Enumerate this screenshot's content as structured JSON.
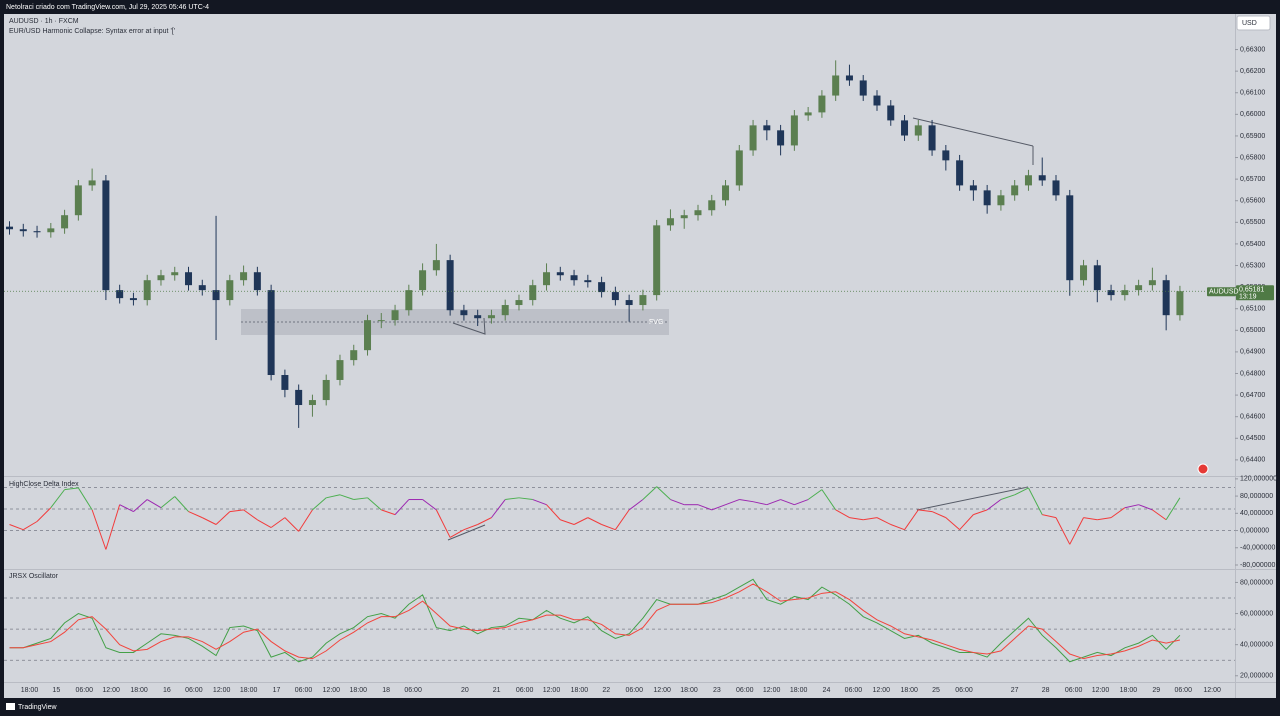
{
  "header": {
    "caption": "Netolraci criado com TradingView.com, Jul 29, 2025 05:46 UTC-4",
    "symbol": "AUDUSD · 1h · FXCM",
    "error": "EUR/USD Harmonic Collapse: Syntax error at input '['"
  },
  "currency": "USD",
  "footer": {
    "brand": "TradingView"
  },
  "chart_data": [
    {
      "type": "candlestick",
      "open": [
        0.6548,
        0.65468,
        0.65459,
        0.65454,
        0.65472,
        0.65533,
        0.65671,
        0.65694,
        0.65186,
        0.65149,
        0.6514,
        0.65232,
        0.65255,
        0.65269,
        0.65209,
        0.65186,
        0.6514,
        0.65232,
        0.65269,
        0.65186,
        0.64793,
        0.64724,
        0.64654,
        0.64677,
        0.6477,
        0.64862,
        0.64908,
        0.65047,
        0.65047,
        0.65093,
        0.65186,
        0.65278,
        0.65325,
        0.65093,
        0.6507,
        0.65056,
        0.6507,
        0.65117,
        0.6514,
        0.65209,
        0.65269,
        0.65255,
        0.65232,
        0.65223,
        0.65177,
        0.6514,
        0.65117,
        0.65163,
        0.65486,
        0.65519,
        0.65533,
        0.65556,
        0.65602,
        0.65671,
        0.65833,
        0.65949,
        0.65926,
        0.65856,
        0.65995,
        0.66009,
        0.66087,
        0.6618,
        0.66157,
        0.66087,
        0.66041,
        0.65972,
        0.65902,
        0.65949,
        0.65833,
        0.65787,
        0.65671,
        0.65648,
        0.65579,
        0.65625,
        0.65671,
        0.65718,
        0.65694,
        0.65625,
        0.65232,
        0.65301,
        0.65186,
        0.65163,
        0.65186,
        0.65209,
        0.65232,
        0.6507
      ],
      "high": [
        0.65505,
        0.65493,
        0.65484,
        0.65497,
        0.65558,
        0.65696,
        0.65749,
        0.65719,
        0.65211,
        0.65174,
        0.65257,
        0.6528,
        0.65294,
        0.65294,
        0.65234,
        0.6553,
        0.65257,
        0.653,
        0.65294,
        0.65211,
        0.64818,
        0.64749,
        0.64702,
        0.64795,
        0.64887,
        0.64933,
        0.65072,
        0.6508,
        0.65118,
        0.65211,
        0.6531,
        0.654,
        0.6535,
        0.65118,
        0.65095,
        0.65095,
        0.65142,
        0.65165,
        0.65234,
        0.6531,
        0.65294,
        0.6528,
        0.65257,
        0.65248,
        0.65202,
        0.65165,
        0.65188,
        0.65511,
        0.6556,
        0.65558,
        0.65581,
        0.65627,
        0.65696,
        0.65858,
        0.65974,
        0.65974,
        0.65951,
        0.6602,
        0.66034,
        0.66112,
        0.6625,
        0.6623,
        0.66182,
        0.66112,
        0.66066,
        0.65997,
        0.65974,
        0.65974,
        0.65858,
        0.65812,
        0.65696,
        0.65673,
        0.6565,
        0.65696,
        0.65743,
        0.658,
        0.65719,
        0.6565,
        0.65326,
        0.65326,
        0.65211,
        0.65211,
        0.65234,
        0.6529,
        0.65257,
        0.65206
      ],
      "low": [
        0.65443,
        0.65434,
        0.65429,
        0.65429,
        0.65447,
        0.65508,
        0.65646,
        0.6514,
        0.65124,
        0.65115,
        0.65115,
        0.65207,
        0.6523,
        0.65184,
        0.65161,
        0.64955,
        0.65115,
        0.65207,
        0.65161,
        0.64768,
        0.6469,
        0.64548,
        0.646,
        0.64652,
        0.64745,
        0.64837,
        0.64883,
        0.6501,
        0.65022,
        0.65068,
        0.65161,
        0.65253,
        0.65068,
        0.65045,
        0.6502,
        0.65031,
        0.65045,
        0.65092,
        0.65115,
        0.65184,
        0.6523,
        0.65207,
        0.65198,
        0.65152,
        0.65115,
        0.6504,
        0.65092,
        0.65138,
        0.65461,
        0.6547,
        0.65508,
        0.65531,
        0.65577,
        0.65646,
        0.65808,
        0.6588,
        0.6581,
        0.65831,
        0.6597,
        0.65984,
        0.66062,
        0.66132,
        0.66062,
        0.66016,
        0.65947,
        0.65877,
        0.65877,
        0.65808,
        0.6574,
        0.65646,
        0.656,
        0.6554,
        0.65554,
        0.656,
        0.65646,
        0.65669,
        0.656,
        0.6516,
        0.65207,
        0.6513,
        0.65138,
        0.65138,
        0.65161,
        0.65184,
        0.65,
        0.65045
      ],
      "close": [
        0.65468,
        0.65459,
        0.65454,
        0.65472,
        0.65533,
        0.65671,
        0.65694,
        0.65186,
        0.65149,
        0.6514,
        0.65232,
        0.65255,
        0.65269,
        0.65209,
        0.65186,
        0.6514,
        0.65232,
        0.65269,
        0.65186,
        0.64793,
        0.64724,
        0.64654,
        0.64677,
        0.6477,
        0.64862,
        0.64908,
        0.65047,
        0.65047,
        0.65093,
        0.65186,
        0.65278,
        0.65325,
        0.65093,
        0.6507,
        0.65056,
        0.6507,
        0.65117,
        0.6514,
        0.65209,
        0.65269,
        0.65255,
        0.65232,
        0.65223,
        0.65177,
        0.6514,
        0.65117,
        0.65163,
        0.65486,
        0.65519,
        0.65533,
        0.65556,
        0.65602,
        0.65671,
        0.65833,
        0.65949,
        0.65926,
        0.65856,
        0.65995,
        0.66009,
        0.66087,
        0.6618,
        0.66157,
        0.66087,
        0.66041,
        0.65972,
        0.65902,
        0.65949,
        0.65833,
        0.65787,
        0.65671,
        0.65648,
        0.65579,
        0.65625,
        0.65671,
        0.65718,
        0.65694,
        0.65625,
        0.65232,
        0.65301,
        0.65186,
        0.65163,
        0.65186,
        0.65209,
        0.65232,
        0.6507,
        0.65181
      ],
      "up_color": "#5b7f50",
      "down_color": "#1f3658",
      "ylim": [
        0.6433,
        0.6646
      ],
      "yticks": [
        {
          "value": 0.644,
          "label": "0,64400"
        },
        {
          "value": 0.645,
          "label": "0,64500"
        },
        {
          "value": 0.646,
          "label": "0,64600"
        },
        {
          "value": 0.647,
          "label": "0,64700"
        },
        {
          "value": 0.648,
          "label": "0,64800"
        },
        {
          "value": 0.649,
          "label": "0,64900"
        },
        {
          "value": 0.65,
          "label": "0,65000"
        },
        {
          "value": 0.651,
          "label": "0,65100"
        },
        {
          "value": 0.652,
          "label": "0,65200"
        },
        {
          "value": 0.653,
          "label": "0,65300"
        },
        {
          "value": 0.654,
          "label": "0,65400"
        },
        {
          "value": 0.655,
          "label": "0,65500"
        },
        {
          "value": 0.656,
          "label": "0,65600"
        },
        {
          "value": 0.657,
          "label": "0,65700"
        },
        {
          "value": 0.658,
          "label": "0,65800"
        },
        {
          "value": 0.659,
          "label": "0,65900"
        },
        {
          "value": 0.66,
          "label": "0,66000"
        },
        {
          "value": 0.661,
          "label": "0,66100"
        },
        {
          "value": 0.662,
          "label": "0,66200"
        },
        {
          "value": 0.663,
          "label": "0,66300"
        }
      ],
      "xlim": [
        -0.4,
        89
      ],
      "xticks": [
        {
          "value": 1.45,
          "label": "18:00"
        },
        {
          "value": 3.4,
          "label": "15"
        },
        {
          "value": 5.43,
          "label": "06:00"
        },
        {
          "value": 7.38,
          "label": "12:00"
        },
        {
          "value": 9.41,
          "label": "18:00"
        },
        {
          "value": 11.43,
          "label": "16"
        },
        {
          "value": 13.39,
          "label": "06:00"
        },
        {
          "value": 15.41,
          "label": "12:00"
        },
        {
          "value": 17.37,
          "label": "18:00"
        },
        {
          "value": 19.39,
          "label": "17"
        },
        {
          "value": 21.35,
          "label": "06:00"
        },
        {
          "value": 23.37,
          "label": "12:00"
        },
        {
          "value": 25.33,
          "label": "18:00"
        },
        {
          "value": 27.35,
          "label": "18"
        },
        {
          "value": 29.31,
          "label": "06:00"
        },
        {
          "value": 33.07,
          "label": "20"
        },
        {
          "value": 35.38,
          "label": "21"
        },
        {
          "value": 37.41,
          "label": "06:00"
        },
        {
          "value": 39.36,
          "label": "12:00"
        },
        {
          "value": 41.39,
          "label": "18:00"
        },
        {
          "value": 43.34,
          "label": "22"
        },
        {
          "value": 45.37,
          "label": "06:00"
        },
        {
          "value": 47.4,
          "label": "12:00"
        },
        {
          "value": 49.35,
          "label": "18:00"
        },
        {
          "value": 51.37,
          "label": "23"
        },
        {
          "value": 53.4,
          "label": "06:00"
        },
        {
          "value": 55.35,
          "label": "12:00"
        },
        {
          "value": 57.31,
          "label": "18:00"
        },
        {
          "value": 59.33,
          "label": "24"
        },
        {
          "value": 61.29,
          "label": "06:00"
        },
        {
          "value": 63.31,
          "label": "12:00"
        },
        {
          "value": 65.34,
          "label": "18:00"
        },
        {
          "value": 67.29,
          "label": "25"
        },
        {
          "value": 69.32,
          "label": "06:00"
        },
        {
          "value": 73.0,
          "label": "27"
        },
        {
          "value": 75.25,
          "label": "28"
        },
        {
          "value": 77.28,
          "label": "06:00"
        },
        {
          "value": 79.23,
          "label": "12:00"
        },
        {
          "value": 81.26,
          "label": "18:00"
        },
        {
          "value": 83.28,
          "label": "29"
        },
        {
          "value": 85.24,
          "label": "06:00"
        },
        {
          "value": 87.34,
          "label": "12:00"
        }
      ],
      "last_price": {
        "symbol": "AUDUSD",
        "value": 0.65181,
        "label": "0,65181",
        "countdown": "13:19",
        "color": "#4f7a45"
      },
      "annotations": [
        "FVG"
      ]
    },
    {
      "type": "line",
      "title": "HighClose Delta Index",
      "series": [
        {
          "values": [
            14,
            2,
            21,
            53,
            95,
            99,
            48,
            -44,
            60,
            44,
            72,
            53,
            79,
            44,
            30,
            14,
            44,
            48,
            25,
            7,
            30,
            -2,
            48,
            76,
            83,
            72,
            76,
            48,
            37,
            72,
            72,
            48,
            -16,
            2,
            14,
            30,
            72,
            76,
            72,
            60,
            25,
            14,
            30,
            14,
            2,
            48,
            72,
            102,
            72,
            60,
            60,
            48,
            60,
            72,
            67,
            60,
            72,
            60,
            72,
            95,
            48,
            30,
            25,
            30,
            14,
            2,
            48,
            44,
            30,
            2,
            37,
            48,
            72,
            83,
            99,
            37,
            30,
            -32,
            30,
            25,
            30,
            53,
            60,
            48,
            25,
            76
          ],
          "color_high": "#4caf50",
          "color_mid": "#9c27b0",
          "color_low": "#f23b3b"
        }
      ],
      "levels": [
        100,
        50,
        0
      ],
      "level_color": "#787b86",
      "ylim": [
        -87,
        122
      ],
      "yticks": [
        {
          "value": 120,
          "label": "120,000000"
        },
        {
          "value": 80,
          "label": "80,000000"
        },
        {
          "value": 40,
          "label": "40,000000"
        },
        {
          "value": 0,
          "label": "0,000000"
        },
        {
          "value": -40,
          "label": "-40,000000"
        },
        {
          "value": -80,
          "label": "-80,000000"
        }
      ]
    },
    {
      "type": "line",
      "title": "JRSX Oscillator",
      "series": [
        {
          "color": "#43a047",
          "values": [
            38,
            38,
            41,
            44,
            54,
            60,
            57,
            38,
            35,
            35,
            41,
            47,
            46,
            44,
            39,
            33,
            51,
            52,
            49,
            32,
            35,
            29,
            32,
            41,
            47,
            51,
            58,
            60,
            57,
            66,
            72,
            51,
            49,
            52,
            47,
            51,
            52,
            57,
            56,
            62,
            57,
            54,
            58,
            49,
            44,
            47,
            57,
            69,
            66,
            66,
            66,
            69,
            72,
            77,
            82,
            69,
            66,
            71,
            69,
            77,
            72,
            66,
            58,
            54,
            49,
            44,
            46,
            41,
            38,
            35,
            35,
            32,
            41,
            49,
            57,
            46,
            38,
            29,
            32,
            35,
            33,
            38,
            41,
            46,
            37,
            46
          ]
        },
        {
          "color": "#f2453d",
          "values": [
            38,
            38,
            40,
            42,
            48,
            56,
            58,
            50,
            40,
            36,
            37,
            42,
            45,
            45,
            42,
            37,
            42,
            48,
            50,
            42,
            36,
            32,
            31,
            36,
            43,
            48,
            54,
            58,
            58,
            62,
            68,
            60,
            52,
            50,
            49,
            50,
            51,
            54,
            56,
            59,
            59,
            56,
            56,
            53,
            47,
            46,
            51,
            62,
            66,
            66,
            66,
            67,
            70,
            74,
            79,
            74,
            68,
            69,
            70,
            73,
            74,
            69,
            62,
            56,
            52,
            47,
            45,
            43,
            40,
            37,
            35,
            34,
            36,
            44,
            52,
            50,
            42,
            34,
            31,
            33,
            34,
            36,
            39,
            43,
            41,
            43
          ]
        }
      ],
      "levels": [
        70,
        50,
        30
      ],
      "level_color": "#787b86",
      "ylim": [
        16,
        88
      ],
      "yticks": [
        {
          "value": 80,
          "label": "80,000000"
        },
        {
          "value": 60,
          "label": "60,000000"
        },
        {
          "value": 40,
          "label": "40,000000"
        },
        {
          "value": 20,
          "label": "20,000000"
        }
      ]
    }
  ]
}
